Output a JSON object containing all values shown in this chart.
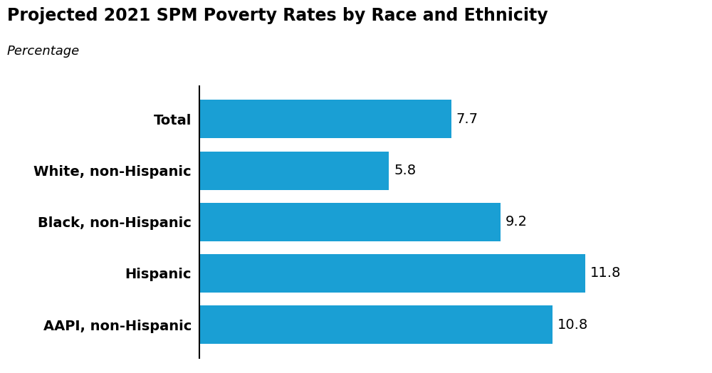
{
  "title": "Projected 2021 SPM Poverty Rates by Race and Ethnicity",
  "subtitle": "Percentage",
  "categories": [
    "Total",
    "White, non-Hispanic",
    "Black, non-Hispanic",
    "Hispanic",
    "AAPI, non-Hispanic"
  ],
  "values": [
    7.7,
    5.8,
    9.2,
    11.8,
    10.8
  ],
  "bar_color": "#1a9fd4",
  "label_fontsize": 14,
  "value_fontsize": 14,
  "title_fontsize": 17,
  "subtitle_fontsize": 13,
  "background_color": "#ffffff",
  "xlim": [
    0,
    13.5
  ],
  "bar_height": 0.75
}
